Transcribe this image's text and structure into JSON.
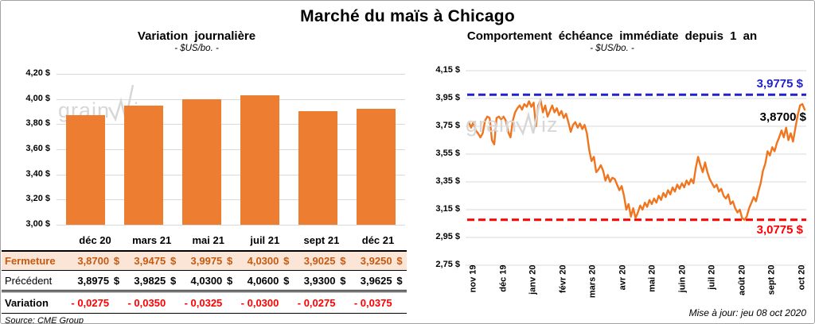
{
  "page": {
    "title": "Marché du maïs à Chicago"
  },
  "watermark": {
    "part1": "grain",
    "part2": "iz"
  },
  "left_chart": {
    "title": "Variation journalière",
    "subtitle": "- $US/bo. -",
    "y_tick_labels": [
      "4,20 $",
      "4,00 $",
      "3,80 $",
      "3,60 $",
      "3,40 $",
      "3,20 $",
      "3,00 $"
    ]
  },
  "right_chart": {
    "title": "Comportement échéance immédiate depuis 1 an",
    "subtitle": "- $US/bo. -",
    "y_tick_labels": [
      "4,15 $",
      "3,95 $",
      "3,75 $",
      "3,55 $",
      "3,35 $",
      "3,15 $",
      "2,95 $",
      "2,75 $"
    ],
    "x_tick_labels": [
      "nov 19",
      "déc 19",
      "janv 20",
      "févr 20",
      "mars 20",
      "avr 20",
      "mai 20",
      "juin 20",
      "juil 20",
      "août 20",
      "sept 20",
      "oct 20"
    ],
    "resistance_label": "3,9775 $",
    "last_price_label": "3,8700 $",
    "support_label": "3,0775 $",
    "updated": "Mise à jour: jeu 08 oct 2020"
  },
  "table": {
    "header": [
      "déc 20",
      "mars 21",
      "mai 21",
      "juil 21",
      "sept 21",
      "déc 21"
    ],
    "rows": [
      {
        "label": "Fermeture",
        "style": "fermeture",
        "currency": "$",
        "values": [
          "3,8700",
          "3,9475",
          "3,9975",
          "4,0300",
          "3,9025",
          "3,9250"
        ]
      },
      {
        "label": "Précédent",
        "style": "precedent",
        "currency": "$",
        "values": [
          "3,8975",
          "3,9825",
          "4,0300",
          "4,0600",
          "3,9300",
          "3,9625"
        ]
      },
      {
        "label": "Variation",
        "style": "variation",
        "currency": "",
        "values": [
          "- 0,0275",
          "- 0,0350",
          "- 0,0325",
          "- 0,0300",
          "- 0,0275",
          "- 0,0375"
        ]
      }
    ],
    "source": "Source: CME Group"
  },
  "chart_data": [
    {
      "type": "bar",
      "title": "Variation journalière",
      "ylabel": "$US/bo.",
      "categories": [
        "déc 20",
        "mars 21",
        "mai 21",
        "juil 21",
        "sept 21",
        "déc 21"
      ],
      "values": [
        3.87,
        3.9475,
        3.9975,
        4.03,
        3.9025,
        3.925
      ],
      "ylim": [
        3.0,
        4.2
      ],
      "y_tick_step": 0.2,
      "grid": true,
      "bar_color": "#ED7D31"
    },
    {
      "type": "line",
      "title": "Comportement échéance immédiate depuis 1 an",
      "ylabel": "$US/bo.",
      "x_start": "nov 19",
      "x_end": "oct 20",
      "ylim": [
        2.75,
        4.15
      ],
      "y_tick_step": 0.2,
      "grid": true,
      "line_color": "#F0751F",
      "resistance": 3.9775,
      "support": 3.0775,
      "last_value": 3.87,
      "values": [
        3.78,
        3.74,
        3.78,
        3.72,
        3.7,
        3.67,
        3.7,
        3.79,
        3.82,
        3.81,
        3.65,
        3.62,
        3.81,
        3.82,
        3.8,
        3.82,
        3.79,
        3.71,
        3.67,
        3.79,
        3.85,
        3.88,
        3.9,
        3.87,
        3.91,
        3.89,
        3.93,
        3.89,
        3.92,
        3.75,
        3.9,
        3.94,
        3.85,
        3.9,
        3.82,
        3.86,
        3.9,
        3.85,
        3.88,
        3.83,
        3.86,
        3.81,
        3.84,
        3.78,
        3.71,
        3.76,
        3.78,
        3.74,
        3.77,
        3.73,
        3.76,
        3.7,
        3.58,
        3.5,
        3.53,
        3.42,
        3.44,
        3.47,
        3.43,
        3.36,
        3.4,
        3.35,
        3.38,
        3.37,
        3.33,
        3.29,
        3.32,
        3.25,
        3.15,
        3.19,
        3.1,
        3.16,
        3.09,
        3.13,
        3.18,
        3.15,
        3.2,
        3.17,
        3.22,
        3.19,
        3.23,
        3.2,
        3.25,
        3.22,
        3.27,
        3.24,
        3.29,
        3.26,
        3.31,
        3.28,
        3.33,
        3.3,
        3.34,
        3.31,
        3.36,
        3.33,
        3.37,
        3.34,
        3.45,
        3.53,
        3.47,
        3.42,
        3.49,
        3.42,
        3.37,
        3.34,
        3.31,
        3.33,
        3.28,
        3.3,
        3.25,
        3.23,
        3.26,
        3.19,
        3.21,
        3.16,
        3.13,
        3.15,
        3.09,
        3.077,
        3.1,
        3.16,
        3.2,
        3.24,
        3.21,
        3.28,
        3.34,
        3.43,
        3.48,
        3.57,
        3.54,
        3.6,
        3.57,
        3.63,
        3.67,
        3.72,
        3.67,
        3.74,
        3.65,
        3.7,
        3.64,
        3.74,
        3.83,
        3.9,
        3.91,
        3.87
      ]
    }
  ],
  "colors": {
    "bar": "#ED7D31",
    "line": "#F0751F",
    "resistance": "#2222CC",
    "support": "#FF0000",
    "grid": "#D9D9D9",
    "fermeture_bg": "#FBE5D6",
    "fermeture_text": "#C55A11",
    "negative": "#FF0000",
    "watermark": "#D7D7D7"
  }
}
